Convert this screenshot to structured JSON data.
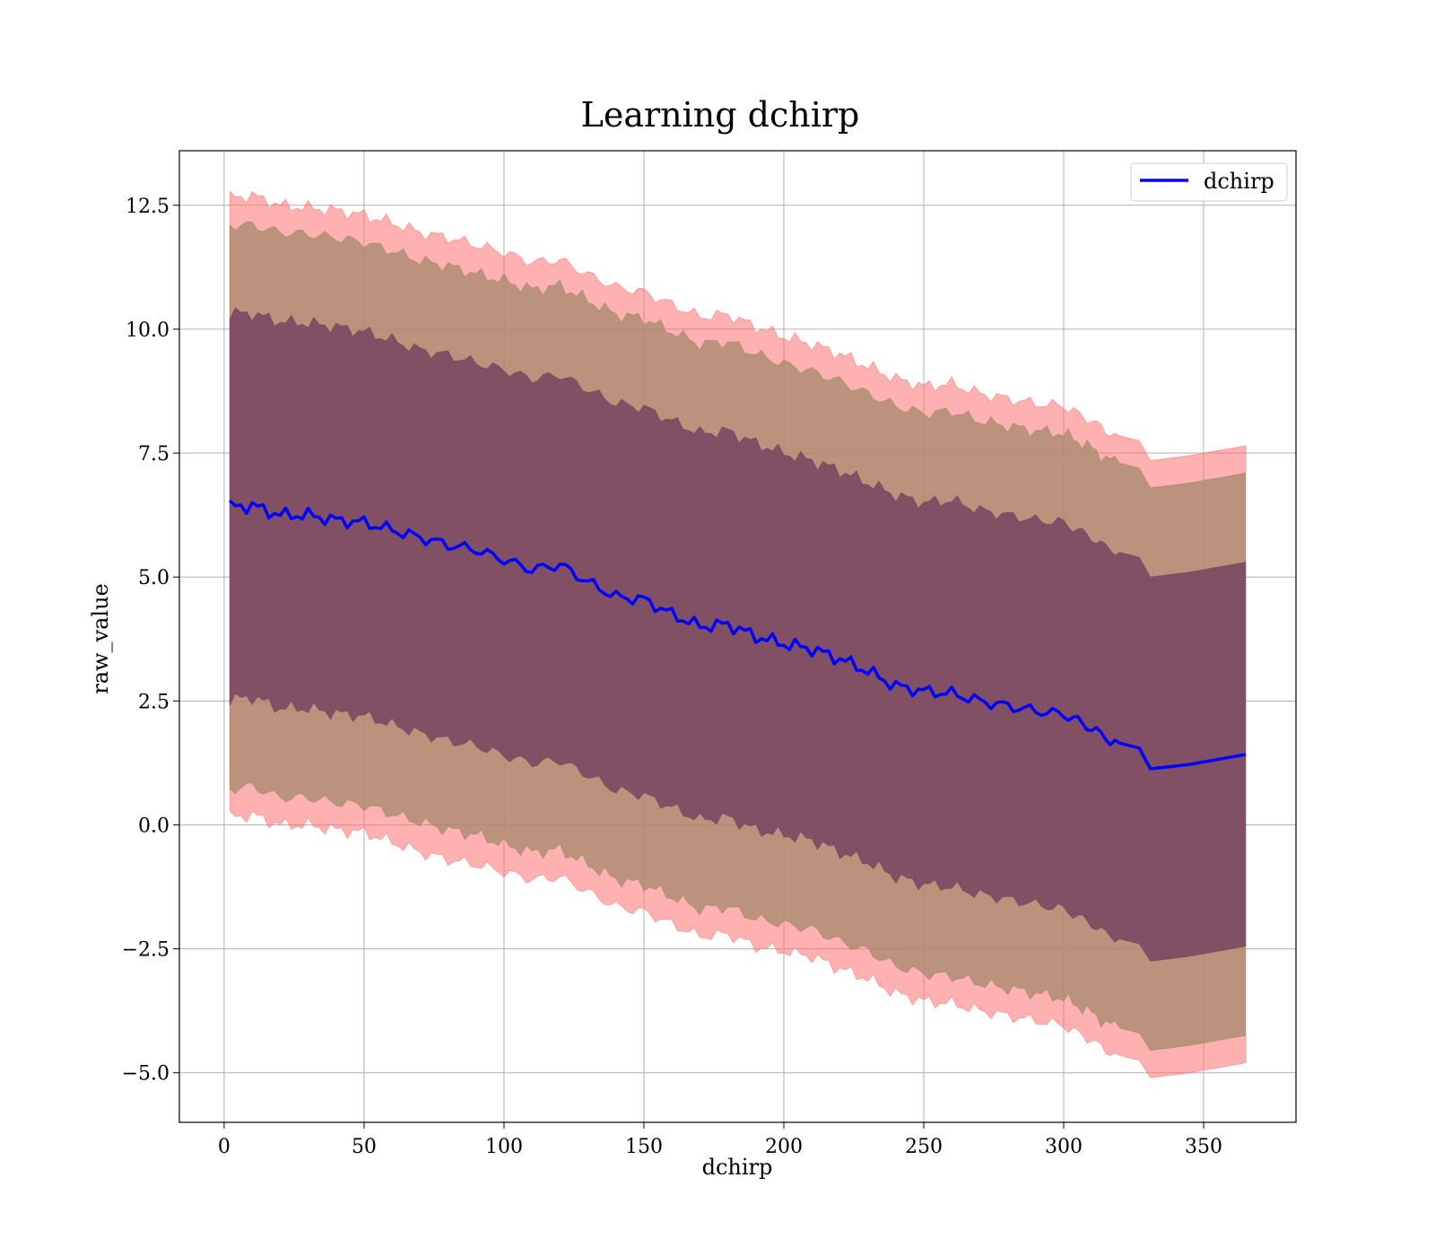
{
  "chart_data": {
    "type": "line",
    "title": "Learning dchirp",
    "xlabel": "dchirp",
    "ylabel": "raw_value",
    "xlim": [
      -16,
      383
    ],
    "ylim": [
      -6.0,
      13.6
    ],
    "xticks": [
      0,
      50,
      100,
      150,
      200,
      250,
      300,
      350
    ],
    "xtick_labels": [
      "0",
      "50",
      "100",
      "150",
      "200",
      "250",
      "300",
      "350"
    ],
    "yticks": [
      -5.0,
      -2.5,
      0.0,
      2.5,
      5.0,
      7.5,
      10.0,
      12.5
    ],
    "ytick_labels": [
      "−5.0",
      "−2.5",
      "0.0",
      "2.5",
      "5.0",
      "7.5",
      "10.0",
      "12.5"
    ],
    "grid": true,
    "legend_position": "top-right",
    "colors": {
      "mean_line": "#0000ff",
      "band_outer": "#ff6f6f",
      "band_middle": "#a4886a",
      "band_inner": "#744060"
    },
    "series": [
      {
        "name": "dchirp",
        "x": [
          2,
          10,
          20,
          30,
          40,
          50,
          60,
          70,
          80,
          90,
          100,
          110,
          120,
          130,
          140,
          150,
          160,
          170,
          180,
          190,
          200,
          210,
          220,
          230,
          240,
          250,
          260,
          270,
          280,
          290,
          300,
          305,
          310,
          315,
          320,
          327,
          331,
          345,
          365
        ],
        "y": [
          6.42,
          6.44,
          6.25,
          6.25,
          6.15,
          6.1,
          5.95,
          5.8,
          5.65,
          5.55,
          5.35,
          5.15,
          5.25,
          4.9,
          4.6,
          4.55,
          4.25,
          4.0,
          4.05,
          3.8,
          3.65,
          3.55,
          3.35,
          3.1,
          2.8,
          2.7,
          2.65,
          2.5,
          2.4,
          2.3,
          2.23,
          2.1,
          1.95,
          1.75,
          1.65,
          1.55,
          1.13,
          1.22,
          1.42
        ]
      }
    ],
    "bands": [
      {
        "x": [
          2,
          10,
          20,
          30,
          40,
          50,
          60,
          70,
          80,
          90,
          100,
          110,
          120,
          130,
          140,
          150,
          160,
          170,
          180,
          190,
          200,
          210,
          220,
          230,
          240,
          250,
          260,
          270,
          280,
          290,
          300,
          305,
          310,
          315,
          320,
          327,
          331,
          345,
          365
        ],
        "lower": [
          0.15,
          0.2,
          0.0,
          0.0,
          -0.1,
          -0.15,
          -0.35,
          -0.55,
          -0.7,
          -0.8,
          -0.95,
          -1.1,
          -1.05,
          -1.35,
          -1.65,
          -1.75,
          -2.0,
          -2.25,
          -2.2,
          -2.45,
          -2.55,
          -2.65,
          -2.9,
          -3.1,
          -3.4,
          -3.55,
          -3.6,
          -3.75,
          -3.85,
          -3.95,
          -4.05,
          -4.2,
          -4.35,
          -4.55,
          -4.65,
          -4.75,
          -5.1,
          -5.0,
          -4.8
        ],
        "upper": [
          12.65,
          12.7,
          12.5,
          12.45,
          12.4,
          12.3,
          12.15,
          11.95,
          11.85,
          11.7,
          11.55,
          11.35,
          11.4,
          11.1,
          10.85,
          10.75,
          10.5,
          10.25,
          10.3,
          10.05,
          9.85,
          9.7,
          9.5,
          9.25,
          9.0,
          8.85,
          8.9,
          8.7,
          8.6,
          8.5,
          8.45,
          8.3,
          8.15,
          7.95,
          7.85,
          7.75,
          7.35,
          7.45,
          7.65
        ]
      },
      {
        "x": [
          2,
          10,
          20,
          30,
          40,
          50,
          60,
          70,
          80,
          90,
          100,
          110,
          120,
          130,
          140,
          150,
          160,
          170,
          180,
          190,
          200,
          210,
          220,
          230,
          240,
          250,
          260,
          270,
          280,
          290,
          300,
          305,
          310,
          315,
          320,
          327,
          331,
          345,
          365
        ],
        "lower": [
          0.72,
          0.78,
          0.55,
          0.55,
          0.45,
          0.4,
          0.22,
          0.05,
          -0.1,
          -0.2,
          -0.4,
          -0.55,
          -0.5,
          -0.8,
          -1.1,
          -1.2,
          -1.45,
          -1.7,
          -1.65,
          -1.9,
          -2.0,
          -2.1,
          -2.35,
          -2.55,
          -2.85,
          -3.0,
          -3.05,
          -3.2,
          -3.3,
          -3.4,
          -3.5,
          -3.65,
          -3.8,
          -4.0,
          -4.1,
          -4.2,
          -4.55,
          -4.45,
          -4.25
        ],
        "upper": [
          12.1,
          12.1,
          11.95,
          11.92,
          11.85,
          11.75,
          11.58,
          11.38,
          11.28,
          11.12,
          10.98,
          10.8,
          10.88,
          10.58,
          10.3,
          10.22,
          9.95,
          9.7,
          9.75,
          9.5,
          9.3,
          9.15,
          8.95,
          8.7,
          8.45,
          8.3,
          8.35,
          8.15,
          8.05,
          7.95,
          7.9,
          7.75,
          7.6,
          7.4,
          7.3,
          7.2,
          6.8,
          6.9,
          7.1
        ]
      },
      {
        "x": [
          2,
          10,
          20,
          30,
          40,
          50,
          60,
          70,
          80,
          90,
          100,
          110,
          120,
          130,
          140,
          150,
          160,
          170,
          180,
          190,
          200,
          210,
          220,
          230,
          240,
          250,
          260,
          270,
          280,
          290,
          300,
          305,
          310,
          315,
          320,
          327,
          331,
          345,
          365
        ],
        "lower": [
          2.52,
          2.58,
          2.35,
          2.35,
          2.25,
          2.2,
          2.02,
          1.85,
          1.7,
          1.6,
          1.4,
          1.25,
          1.3,
          1.0,
          0.7,
          0.6,
          0.35,
          0.1,
          0.15,
          -0.1,
          -0.2,
          -0.3,
          -0.55,
          -0.75,
          -1.05,
          -1.2,
          -1.25,
          -1.4,
          -1.5,
          -1.6,
          -1.7,
          -1.85,
          -2.0,
          -2.2,
          -2.3,
          -2.4,
          -2.75,
          -2.65,
          -2.45
        ],
        "upper": [
          10.32,
          10.32,
          10.15,
          10.12,
          10.05,
          9.95,
          9.78,
          9.58,
          9.48,
          9.32,
          9.18,
          9.0,
          9.08,
          8.78,
          8.5,
          8.42,
          8.15,
          7.9,
          7.95,
          7.7,
          7.5,
          7.35,
          7.15,
          6.9,
          6.65,
          6.5,
          6.55,
          6.35,
          6.25,
          6.15,
          6.1,
          5.95,
          5.8,
          5.6,
          5.5,
          5.4,
          5.0,
          5.1,
          5.3
        ]
      }
    ]
  }
}
